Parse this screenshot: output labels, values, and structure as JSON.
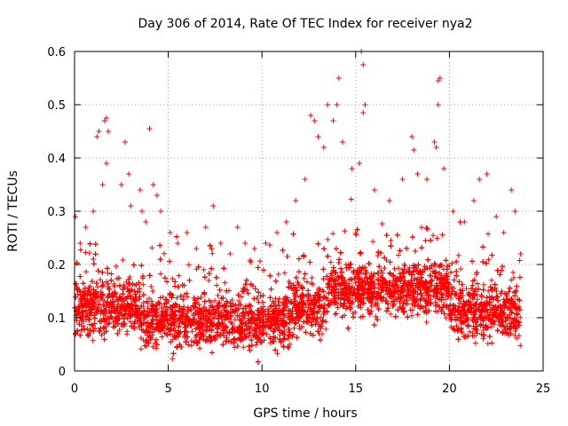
{
  "chart_data": {
    "type": "scatter",
    "title": "Day 306 of 2014, Rate Of TEC Index for receiver nya2",
    "xlabel": "GPS time / hours",
    "ylabel": "ROTI / TECUs",
    "xlim": [
      0,
      25
    ],
    "ylim": [
      0,
      0.6
    ],
    "xticks": [
      0,
      5,
      10,
      15,
      20,
      25
    ],
    "yticks": [
      0,
      0.1,
      0.2,
      0.3,
      0.4,
      0.5,
      0.6
    ],
    "xtick_labels": [
      "0",
      "5",
      "10",
      "15",
      "20",
      "25"
    ],
    "ytick_labels": [
      "0",
      "0.1",
      "0.2",
      "0.3",
      "0.4",
      "0.5",
      "0.6"
    ],
    "grid": true,
    "marker": "+",
    "series": [
      {
        "name": "ROTI",
        "color": "#ff0000",
        "sampled_points": [
          [
            0.05,
            0.29
          ],
          [
            0.3,
            0.24
          ],
          [
            0.6,
            0.27
          ],
          [
            1.0,
            0.3
          ],
          [
            1.2,
            0.44
          ],
          [
            1.3,
            0.45
          ],
          [
            1.6,
            0.47
          ],
          [
            1.7,
            0.475
          ],
          [
            1.8,
            0.45
          ],
          [
            1.5,
            0.35
          ],
          [
            1.7,
            0.39
          ],
          [
            2.5,
            0.35
          ],
          [
            2.7,
            0.43
          ],
          [
            2.9,
            0.37
          ],
          [
            3.0,
            0.31
          ],
          [
            3.5,
            0.34
          ],
          [
            3.6,
            0.3
          ],
          [
            3.8,
            0.28
          ],
          [
            4.0,
            0.455
          ],
          [
            4.2,
            0.35
          ],
          [
            4.4,
            0.33
          ],
          [
            4.6,
            0.3
          ],
          [
            5.1,
            0.26
          ],
          [
            5.5,
            0.24
          ],
          [
            6.0,
            0.26
          ],
          [
            6.5,
            0.23
          ],
          [
            7.0,
            0.27
          ],
          [
            7.4,
            0.31
          ],
          [
            7.8,
            0.24
          ],
          [
            8.3,
            0.22
          ],
          [
            8.7,
            0.27
          ],
          [
            9.1,
            0.24
          ],
          [
            9.6,
            0.23
          ],
          [
            10.2,
            0.24
          ],
          [
            10.8,
            0.26
          ],
          [
            11.3,
            0.28
          ],
          [
            11.8,
            0.32
          ],
          [
            12.3,
            0.36
          ],
          [
            12.6,
            0.48
          ],
          [
            12.8,
            0.47
          ],
          [
            13.0,
            0.44
          ],
          [
            13.3,
            0.42
          ],
          [
            13.5,
            0.5
          ],
          [
            13.8,
            0.47
          ],
          [
            14.0,
            0.5
          ],
          [
            14.1,
            0.55
          ],
          [
            14.3,
            0.43
          ],
          [
            14.8,
            0.38
          ],
          [
            15.3,
            0.6
          ],
          [
            15.4,
            0.575
          ],
          [
            15.5,
            0.5
          ],
          [
            15.4,
            0.485
          ],
          [
            15.2,
            0.39
          ],
          [
            16.0,
            0.34
          ],
          [
            16.8,
            0.32
          ],
          [
            17.5,
            0.36
          ],
          [
            18.0,
            0.44
          ],
          [
            18.1,
            0.415
          ],
          [
            18.3,
            0.37
          ],
          [
            18.8,
            0.36
          ],
          [
            19.2,
            0.43
          ],
          [
            19.3,
            0.42
          ],
          [
            19.4,
            0.545
          ],
          [
            19.5,
            0.55
          ],
          [
            19.4,
            0.5
          ],
          [
            19.7,
            0.38
          ],
          [
            20.2,
            0.3
          ],
          [
            20.8,
            0.28
          ],
          [
            21.3,
            0.32
          ],
          [
            21.6,
            0.36
          ],
          [
            22.0,
            0.37
          ],
          [
            22.5,
            0.29
          ],
          [
            22.9,
            0.26
          ],
          [
            23.3,
            0.34
          ],
          [
            23.5,
            0.3
          ],
          [
            23.8,
            0.22
          ]
        ]
      }
    ]
  }
}
